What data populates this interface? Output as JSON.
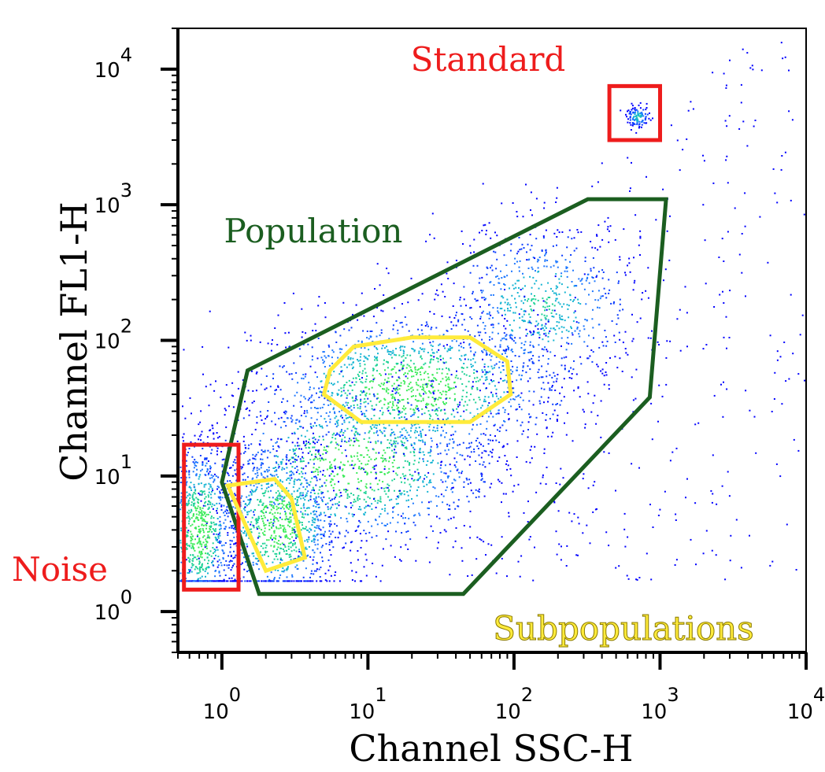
{
  "chart_data": {
    "type": "scatter",
    "xlabel": "Channel SSC-H",
    "ylabel": "Channel FL1-H",
    "x_scale": "log",
    "y_scale": "log",
    "xlim": [
      0.5,
      10000
    ],
    "ylim": [
      0.5,
      20000
    ],
    "x_ticks": [
      {
        "value": 1,
        "base": "10",
        "exp": "0"
      },
      {
        "value": 10,
        "base": "10",
        "exp": "1"
      },
      {
        "value": 100,
        "base": "10",
        "exp": "2"
      },
      {
        "value": 1000,
        "base": "10",
        "exp": "3"
      },
      {
        "value": 10000,
        "base": "10",
        "exp": "4"
      }
    ],
    "y_ticks": [
      {
        "value": 1,
        "base": "10",
        "exp": "0"
      },
      {
        "value": 10,
        "base": "10",
        "exp": "1"
      },
      {
        "value": 100,
        "base": "10",
        "exp": "2"
      },
      {
        "value": 1000,
        "base": "10",
        "exp": "3"
      },
      {
        "value": 10000,
        "base": "10",
        "exp": "4"
      }
    ],
    "grid": false,
    "point_colors": [
      "#0000ff",
      "#0a3cff",
      "#1e78ff",
      "#14b4d2",
      "#1ed296",
      "#3ceb5a"
    ],
    "density_clusters": [
      {
        "cx": 20,
        "cy": 45,
        "sx": 0.55,
        "sy": 0.28,
        "weight": 1.0
      },
      {
        "cx": 8,
        "cy": 12,
        "sx": 0.5,
        "sy": 0.32,
        "weight": 0.8
      },
      {
        "cx": 2.4,
        "cy": 4.5,
        "sx": 0.22,
        "sy": 0.3,
        "weight": 0.7
      },
      {
        "cx": 0.7,
        "cy": 4,
        "sx": 0.12,
        "sy": 0.35,
        "weight": 0.6
      },
      {
        "cx": 150,
        "cy": 180,
        "sx": 0.35,
        "sy": 0.32,
        "weight": 0.5
      },
      {
        "cx": 700,
        "cy": 4500,
        "sx": 0.04,
        "sy": 0.04,
        "weight": 0.08
      }
    ],
    "gates": [
      {
        "name": "Standard",
        "label": "Standard",
        "color": "#ee1c1c",
        "shape": "rect",
        "vertices": [
          [
            450,
            7500
          ],
          [
            1000,
            7500
          ],
          [
            1000,
            3000
          ],
          [
            450,
            3000
          ]
        ]
      },
      {
        "name": "Population",
        "label": "Population",
        "color": "#1b5e20",
        "shape": "polygon",
        "vertices": [
          [
            1.5,
            60
          ],
          [
            320,
            1100
          ],
          [
            1100,
            1100
          ],
          [
            850,
            38
          ],
          [
            45,
            1.35
          ],
          [
            1.8,
            1.35
          ],
          [
            1.0,
            9
          ]
        ]
      },
      {
        "name": "Noise",
        "label": "Noise",
        "color": "#ee1c1c",
        "shape": "rect",
        "vertices": [
          [
            0.55,
            17
          ],
          [
            1.3,
            17
          ],
          [
            1.3,
            1.45
          ],
          [
            0.55,
            1.45
          ]
        ]
      },
      {
        "name": "Subpopulation 1",
        "label": "",
        "color": "#ffeb3b",
        "shape": "polygon",
        "vertices": [
          [
            8,
            90
          ],
          [
            20,
            105
          ],
          [
            50,
            105
          ],
          [
            90,
            70
          ],
          [
            95,
            40
          ],
          [
            50,
            25
          ],
          [
            9,
            25
          ],
          [
            5,
            40
          ],
          [
            5.5,
            60
          ]
        ]
      },
      {
        "name": "Subpopulation 2",
        "label": "",
        "color": "#ffeb3b",
        "shape": "polygon",
        "vertices": [
          [
            1.1,
            8.5
          ],
          [
            2.3,
            9.5
          ],
          [
            3.0,
            6.8
          ],
          [
            3.7,
            2.5
          ],
          [
            2.0,
            2.0
          ]
        ]
      }
    ],
    "annotations": [
      {
        "text": "Subpopulations",
        "color": "#ffeb3b",
        "stroke": "#8a7a00"
      }
    ]
  }
}
